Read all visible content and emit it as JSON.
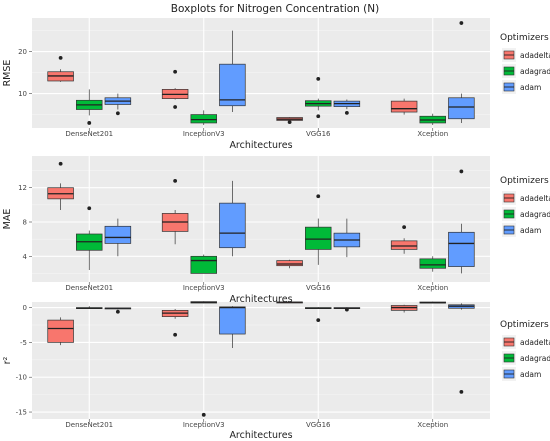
{
  "title": "Boxplots for Nitrogen Concentration (N)",
  "legend": {
    "title": "Optimizers",
    "entries": [
      {
        "name": "adadelta",
        "color": "#F8766D"
      },
      {
        "name": "adagrad",
        "color": "#00BA38"
      },
      {
        "name": "adam",
        "color": "#619CFF"
      }
    ]
  },
  "chart_data": [
    {
      "type": "boxplot",
      "ylabel": "RMSE",
      "xlabel": "Architectures",
      "categories": [
        "DenseNet201",
        "InceptionV3",
        "VGG16",
        "Xception"
      ],
      "ylim": [
        1.8,
        28
      ],
      "yticks": [
        10,
        20
      ],
      "grid": true,
      "legend_position": "right",
      "series": [
        {
          "name": "adadelta",
          "boxes": [
            {
              "min": 12.8,
              "q1": 13.0,
              "median": 14.2,
              "q3": 15.2,
              "max": 15.8,
              "outliers": [
                18.5
              ]
            },
            {
              "min": 8.6,
              "q1": 8.8,
              "median": 9.8,
              "q3": 11.0,
              "max": 11.3,
              "outliers": [
                15.2,
                6.8
              ]
            },
            {
              "min": 3.5,
              "q1": 3.6,
              "median": 3.9,
              "q3": 4.3,
              "max": 4.4,
              "outliers": [
                3.2
              ]
            },
            {
              "min": 5.0,
              "q1": 5.6,
              "median": 6.4,
              "q3": 8.2,
              "max": 8.8,
              "outliers": []
            }
          ]
        },
        {
          "name": "adagrad",
          "boxes": [
            {
              "min": 4.8,
              "q1": 6.2,
              "median": 7.3,
              "q3": 8.4,
              "max": 11.0,
              "outliers": [
                3.0
              ]
            },
            {
              "min": 2.5,
              "q1": 3.0,
              "median": 3.8,
              "q3": 5.0,
              "max": 6.0,
              "outliers": []
            },
            {
              "min": 6.0,
              "q1": 7.0,
              "median": 7.6,
              "q3": 8.3,
              "max": 8.8,
              "outliers": [
                13.5,
                4.6
              ]
            },
            {
              "min": 2.5,
              "q1": 3.0,
              "median": 3.7,
              "q3": 4.6,
              "max": 5.2,
              "outliers": []
            }
          ]
        },
        {
          "name": "adam",
          "boxes": [
            {
              "min": 6.2,
              "q1": 7.4,
              "median": 8.2,
              "q3": 9.0,
              "max": 10.0,
              "outliers": [
                5.3
              ]
            },
            {
              "min": 5.6,
              "q1": 7.1,
              "median": 8.5,
              "q3": 17.0,
              "max": 25.0,
              "outliers": []
            },
            {
              "min": 6.3,
              "q1": 6.9,
              "median": 7.6,
              "q3": 8.2,
              "max": 8.6,
              "outliers": [
                5.4
              ]
            },
            {
              "min": 3.0,
              "q1": 4.0,
              "median": 6.8,
              "q3": 9.0,
              "max": 10.0,
              "outliers": [
                26.8
              ]
            }
          ]
        }
      ]
    },
    {
      "type": "boxplot",
      "ylabel": "MAE",
      "xlabel": "Architectures",
      "categories": [
        "DenseNet201",
        "InceptionV3",
        "VGG16",
        "Xception"
      ],
      "ylim": [
        1.0,
        15.7
      ],
      "yticks": [
        4,
        8,
        12
      ],
      "grid": true,
      "legend_position": "right",
      "series": [
        {
          "name": "adadelta",
          "boxes": [
            {
              "min": 9.4,
              "q1": 10.7,
              "median": 11.3,
              "q3": 12.0,
              "max": 12.5,
              "outliers": [
                14.8
              ]
            },
            {
              "min": 5.4,
              "q1": 6.9,
              "median": 8.0,
              "q3": 9.0,
              "max": 9.4,
              "outliers": [
                12.8
              ]
            },
            {
              "min": 2.6,
              "q1": 2.9,
              "median": 3.1,
              "q3": 3.5,
              "max": 3.6,
              "outliers": []
            },
            {
              "min": 4.3,
              "q1": 4.8,
              "median": 5.2,
              "q3": 5.8,
              "max": 6.1,
              "outliers": [
                7.4
              ]
            }
          ]
        },
        {
          "name": "adagrad",
          "boxes": [
            {
              "min": 2.4,
              "q1": 4.7,
              "median": 5.7,
              "q3": 6.6,
              "max": 7.0,
              "outliers": [
                9.6
              ]
            },
            {
              "min": 2.0,
              "q1": 2.0,
              "median": 3.5,
              "q3": 4.0,
              "max": 4.2,
              "outliers": []
            },
            {
              "min": 3.0,
              "q1": 4.8,
              "median": 6.0,
              "q3": 7.4,
              "max": 8.4,
              "outliers": [
                11.0
              ]
            },
            {
              "min": 2.2,
              "q1": 2.6,
              "median": 3.0,
              "q3": 3.7,
              "max": 4.0,
              "outliers": []
            }
          ]
        },
        {
          "name": "adam",
          "boxes": [
            {
              "min": 4.0,
              "q1": 5.5,
              "median": 6.2,
              "q3": 7.5,
              "max": 8.4,
              "outliers": []
            },
            {
              "min": 4.0,
              "q1": 5.0,
              "median": 6.7,
              "q3": 10.2,
              "max": 12.8,
              "outliers": []
            },
            {
              "min": 3.9,
              "q1": 5.1,
              "median": 5.9,
              "q3": 6.7,
              "max": 8.4,
              "outliers": []
            },
            {
              "min": 2.0,
              "q1": 2.8,
              "median": 5.5,
              "q3": 6.8,
              "max": 7.8,
              "outliers": [
                13.9
              ]
            }
          ]
        }
      ]
    },
    {
      "type": "boxplot",
      "ylabel": "r²",
      "xlabel": "Architectures",
      "categories": [
        "DenseNet201",
        "InceptionV3",
        "VGG16",
        "Xception"
      ],
      "ylim": [
        -16,
        0.8
      ],
      "yticks": [
        -15,
        -10,
        -5,
        0
      ],
      "grid": true,
      "legend_position": "right",
      "series": [
        {
          "name": "adadelta",
          "boxes": [
            {
              "min": -5.4,
              "q1": -5.0,
              "median": -3.0,
              "q3": -1.8,
              "max": -1.4,
              "outliers": []
            },
            {
              "min": -1.6,
              "q1": -1.3,
              "median": -0.8,
              "q3": -0.4,
              "max": -0.2,
              "outliers": [
                -3.9
              ]
            },
            {
              "min": 0.65,
              "q1": 0.72,
              "median": 0.76,
              "q3": 0.8,
              "max": 0.82,
              "outliers": []
            },
            {
              "min": -0.7,
              "q1": -0.4,
              "median": 0.0,
              "q3": 0.3,
              "max": 0.4,
              "outliers": []
            }
          ]
        },
        {
          "name": "adagrad",
          "boxes": [
            {
              "min": -0.2,
              "q1": -0.15,
              "median": -0.1,
              "q3": 0.0,
              "max": 0.2,
              "outliers": [
                0.9
              ]
            },
            {
              "min": 0.6,
              "q1": 0.65,
              "median": 0.75,
              "q3": 0.85,
              "max": 0.9,
              "outliers": [
                -15.4
              ]
            },
            {
              "min": -0.2,
              "q1": -0.15,
              "median": -0.1,
              "q3": 0.0,
              "max": 0.05,
              "outliers": [
                -1.8
              ]
            },
            {
              "min": 0.6,
              "q1": 0.65,
              "median": 0.7,
              "q3": 0.8,
              "max": 0.85,
              "outliers": []
            }
          ]
        },
        {
          "name": "adam",
          "boxes": [
            {
              "min": -0.3,
              "q1": -0.2,
              "median": -0.1,
              "q3": -0.05,
              "max": 0.0,
              "outliers": [
                -0.6
              ]
            },
            {
              "min": -5.8,
              "q1": -3.8,
              "median": 0.0,
              "q3": 0.1,
              "max": 0.2,
              "outliers": []
            },
            {
              "min": -0.2,
              "q1": -0.15,
              "median": -0.1,
              "q3": 0.0,
              "max": 0.05,
              "outliers": [
                -0.3
              ]
            },
            {
              "min": -0.3,
              "q1": -0.1,
              "median": 0.2,
              "q3": 0.4,
              "max": 0.6,
              "outliers": [
                -12.1
              ]
            }
          ]
        }
      ]
    }
  ]
}
